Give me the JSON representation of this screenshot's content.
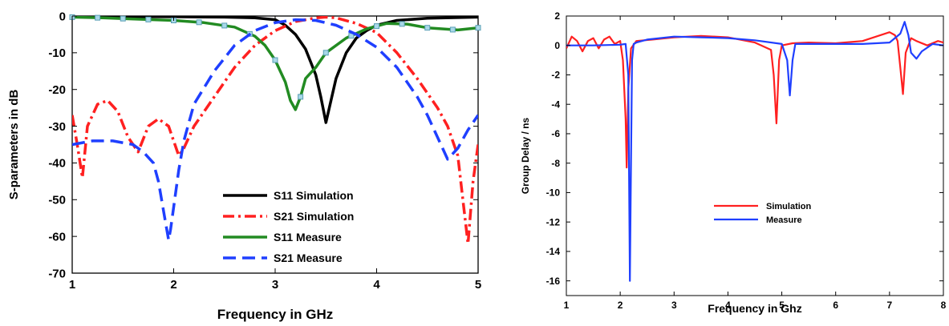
{
  "chart_data": [
    {
      "type": "line",
      "title": "",
      "xlabel": "Frequency in GHz",
      "ylabel": "S-parameters in dB",
      "xlim": [
        1,
        5
      ],
      "ylim": [
        -70,
        0
      ],
      "xticks": [
        "1",
        "2",
        "3",
        "4",
        "5"
      ],
      "yticks": [
        "0",
        "-10",
        "-20",
        "-30",
        "-40",
        "-50",
        "-60",
        "-70"
      ],
      "grid": false,
      "legend_position": "bottom-center",
      "series": [
        {
          "name": "S11 Simulation",
          "color": "#000000",
          "style": "solid",
          "x": [
            1.0,
            2.0,
            2.5,
            2.8,
            3.0,
            3.1,
            3.2,
            3.3,
            3.4,
            3.45,
            3.5,
            3.55,
            3.6,
            3.7,
            3.8,
            3.9,
            4.0,
            4.2,
            4.5,
            5.0
          ],
          "y": [
            -0.2,
            -0.2,
            -0.3,
            -0.5,
            -1.0,
            -2.5,
            -5.0,
            -9.0,
            -16.0,
            -22.0,
            -29.0,
            -23.0,
            -17.0,
            -10.0,
            -6.0,
            -4.0,
            -2.5,
            -1.2,
            -0.6,
            -0.3
          ]
        },
        {
          "name": "S21 Simulation",
          "color": "#ff2020",
          "style": "dashdot",
          "x": [
            1.0,
            1.05,
            1.1,
            1.15,
            1.25,
            1.35,
            1.45,
            1.55,
            1.65,
            1.75,
            1.85,
            1.95,
            2.05,
            2.1,
            2.2,
            2.4,
            2.6,
            2.8,
            3.0,
            3.2,
            3.4,
            3.5,
            3.6,
            3.8,
            4.0,
            4.2,
            4.4,
            4.6,
            4.7,
            4.8,
            4.85,
            4.9,
            4.95,
            5.0
          ],
          "y": [
            -27.0,
            -35.0,
            -44.0,
            -30.0,
            -24.0,
            -23.0,
            -26.0,
            -33.0,
            -37.0,
            -30.0,
            -28.0,
            -30.0,
            -38.0,
            -36.0,
            -30.0,
            -22.0,
            -14.0,
            -8.0,
            -4.0,
            -1.5,
            -0.5,
            -0.3,
            -0.5,
            -2.0,
            -4.5,
            -10.0,
            -17.0,
            -25.0,
            -30.0,
            -38.0,
            -50.0,
            -62.0,
            -45.0,
            -35.0
          ]
        },
        {
          "name": "S11 Measure",
          "color": "#228b22",
          "style": "solid-markers",
          "x": [
            1.0,
            1.3,
            1.5,
            1.8,
            2.0,
            2.3,
            2.6,
            2.8,
            2.9,
            3.0,
            3.1,
            3.15,
            3.2,
            3.25,
            3.3,
            3.4,
            3.5,
            3.7,
            3.9,
            4.1,
            4.3,
            4.5,
            4.8,
            5.0
          ],
          "y": [
            -0.3,
            -0.5,
            -0.7,
            -1.0,
            -1.2,
            -1.8,
            -3.0,
            -5.5,
            -8.0,
            -12.0,
            -18.0,
            -23.0,
            -25.5,
            -22.0,
            -17.0,
            -14.0,
            -10.0,
            -6.0,
            -3.5,
            -2.0,
            -2.2,
            -3.2,
            -3.8,
            -3.2
          ]
        },
        {
          "name": "S21 Measure",
          "color": "#1f3fff",
          "style": "dashed",
          "x": [
            1.0,
            1.2,
            1.4,
            1.6,
            1.7,
            1.8,
            1.85,
            1.9,
            1.95,
            1.97,
            2.0,
            2.05,
            2.1,
            2.2,
            2.4,
            2.6,
            2.8,
            3.0,
            3.2,
            3.4,
            3.6,
            3.8,
            4.0,
            4.2,
            4.4,
            4.5,
            4.6,
            4.7,
            4.8,
            4.9,
            5.0
          ],
          "y": [
            -35.0,
            -34.0,
            -34.0,
            -35.0,
            -37.0,
            -40.0,
            -45.0,
            -53.0,
            -61.0,
            -58.0,
            -52.0,
            -42.0,
            -34.0,
            -24.0,
            -15.0,
            -8.0,
            -4.0,
            -1.8,
            -1.0,
            -1.2,
            -2.5,
            -5.0,
            -8.5,
            -14.0,
            -22.0,
            -27.0,
            -33.0,
            -39.0,
            -36.0,
            -31.0,
            -27.0
          ]
        }
      ]
    },
    {
      "type": "line",
      "title": "",
      "xlabel": "Frequency in Ghz",
      "ylabel": "Group Delay / ns",
      "xlim": [
        1,
        8
      ],
      "ylim": [
        -17,
        2
      ],
      "xticks": [
        "1",
        "2",
        "3",
        "4",
        "5",
        "6",
        "7",
        "8"
      ],
      "yticks": [
        "2",
        "0",
        "-2",
        "-4",
        "-6",
        "-8",
        "-10",
        "-12",
        "-14",
        "-16"
      ],
      "grid": false,
      "legend_position": "center-right",
      "series": [
        {
          "name": "Simulation",
          "color": "#ff2020",
          "style": "solid",
          "x": [
            1.0,
            1.1,
            1.2,
            1.3,
            1.4,
            1.5,
            1.6,
            1.7,
            1.8,
            1.9,
            2.0,
            2.05,
            2.1,
            2.12,
            2.15,
            2.2,
            2.3,
            2.6,
            3.0,
            3.5,
            4.0,
            4.5,
            4.8,
            4.85,
            4.9,
            4.95,
            5.0,
            5.2,
            5.5,
            6.0,
            6.5,
            7.0,
            7.1,
            7.15,
            7.2,
            7.25,
            7.3,
            7.4,
            7.5,
            7.7,
            7.9,
            8.0
          ],
          "y": [
            -0.2,
            0.6,
            0.3,
            -0.4,
            0.3,
            0.5,
            -0.2,
            0.4,
            0.6,
            0.1,
            0.3,
            -1.0,
            -5.0,
            -8.3,
            -3.0,
            -0.2,
            0.3,
            0.4,
            0.55,
            0.65,
            0.55,
            0.2,
            -0.3,
            -2.0,
            -5.3,
            -1.0,
            0.0,
            0.15,
            0.2,
            0.15,
            0.3,
            0.9,
            0.7,
            0.3,
            -1.5,
            -3.3,
            -0.5,
            0.5,
            0.3,
            0.0,
            0.3,
            0.2
          ]
        },
        {
          "name": "Measure",
          "color": "#1f3fff",
          "style": "solid",
          "x": [
            1.0,
            1.5,
            2.0,
            2.1,
            2.15,
            2.18,
            2.2,
            2.22,
            2.25,
            2.3,
            2.5,
            3.0,
            3.5,
            4.0,
            4.5,
            5.0,
            5.1,
            5.15,
            5.2,
            5.25,
            5.3,
            5.5,
            6.0,
            6.5,
            7.0,
            7.2,
            7.28,
            7.35,
            7.4,
            7.5,
            7.6,
            7.8,
            8.0
          ],
          "y": [
            0.0,
            0.0,
            0.05,
            0.1,
            -2.0,
            -16.0,
            -8.0,
            -1.0,
            0.1,
            0.2,
            0.4,
            0.6,
            0.55,
            0.5,
            0.35,
            0.1,
            -1.0,
            -3.4,
            -1.0,
            0.1,
            0.1,
            0.1,
            0.1,
            0.1,
            0.2,
            0.8,
            1.6,
            0.7,
            -0.5,
            -0.9,
            -0.4,
            0.1,
            0.0
          ]
        }
      ]
    }
  ]
}
